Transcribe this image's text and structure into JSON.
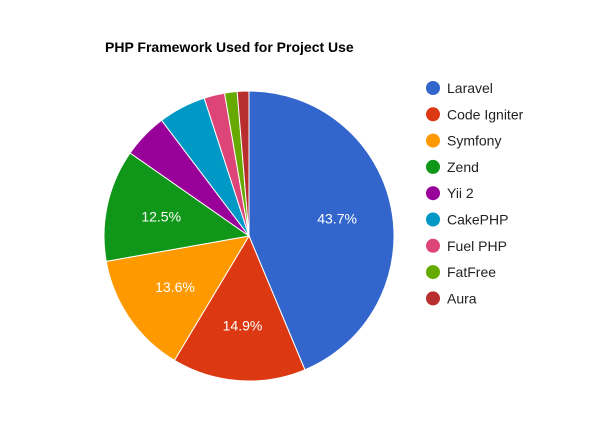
{
  "chart_data": {
    "type": "pie",
    "title": "PHP Framework Used for Project Use",
    "legend_position": "right",
    "slices": [
      {
        "name": "Laravel",
        "value": 43.7,
        "color": "#3366cc",
        "label": "43.7%"
      },
      {
        "name": "Code Igniter",
        "value": 14.9,
        "color": "#dc3912",
        "label": "14.9%"
      },
      {
        "name": "Symfony",
        "value": 13.6,
        "color": "#ff9900",
        "label": "13.6%"
      },
      {
        "name": "Zend",
        "value": 12.5,
        "color": "#109618",
        "label": "12.5%"
      },
      {
        "name": "Yii 2",
        "value": 5.0,
        "color": "#990099",
        "label": ""
      },
      {
        "name": "CakePHP",
        "value": 5.3,
        "color": "#0099c6",
        "label": ""
      },
      {
        "name": "Fuel PHP",
        "value": 2.3,
        "color": "#dd4477",
        "label": ""
      },
      {
        "name": "FatFree",
        "value": 1.4,
        "color": "#66aa00",
        "label": ""
      },
      {
        "name": "Aura",
        "value": 1.3,
        "color": "#b82e2e",
        "label": ""
      }
    ]
  }
}
